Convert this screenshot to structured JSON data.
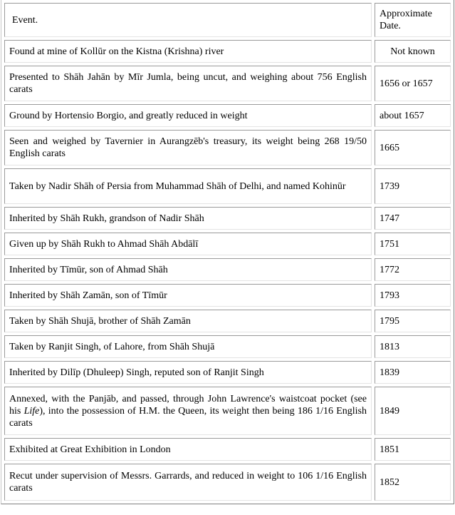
{
  "table": {
    "headers": {
      "event": "Event.",
      "date": "Approximate Date."
    },
    "rows": [
      {
        "event": "Found at mine of Kollūr on the Kistna (Krishna) river",
        "date": "Not known"
      },
      {
        "event": "Presented to Shāh Jahān by Mīr Jumla, being uncut, and weighing about 756 English carats",
        "date": "1656 or 1657"
      },
      {
        "event": "Ground by Hortensio Borgio, and greatly reduced in weight",
        "date": "about 1657"
      },
      {
        "event": "Seen and weighed by Tavernier in Aurangzēb's treasury, its weight being 268 19/50 English carats",
        "date": "1665"
      },
      {
        "event": "Taken by Nadir Shāh of Persia from Muhammad Shāh of Delhi, and named Kohinūr",
        "date": "1739"
      },
      {
        "event": "Inherited by Shāh Rukh, grandson of Nadir Shāh",
        "date": "1747"
      },
      {
        "event": "Given up by Shāh Rukh to Ahmad Shāh Abdālī",
        "date": "1751"
      },
      {
        "event": "Inherited by Tīmūr, son of Ahmad Shāh",
        "date": "1772"
      },
      {
        "event": "Inherited by Shāh Zamān, son of Tīmūr",
        "date": "1793"
      },
      {
        "event": "Taken by Shāh Shujā, brother of Shāh Zamān",
        "date": "1795"
      },
      {
        "event": "Taken by Ranjit Singh, of Lahore, from Shāh Shujā",
        "date": "1813"
      },
      {
        "event": "Inherited by Dilīp (Dhuleep) Singh, reputed son of Ranjit Singh",
        "date": "1839"
      },
      {
        "event_before": "Annexed, with the Panjāb, and passed, through John Lawrence's waistcoat pocket (see his ",
        "event_italic": "Life",
        "event_after": "), into the possession of H.M. the Queen, its weight then being 186 1/16 English carats",
        "date": "1849"
      },
      {
        "event": "Exhibited at Great Exhibition in London",
        "date": "1851"
      },
      {
        "event": "Recut under supervision of Messrs. Garrards, and reduced in weight to 106 1/16 English carats",
        "date": "1852"
      }
    ]
  }
}
